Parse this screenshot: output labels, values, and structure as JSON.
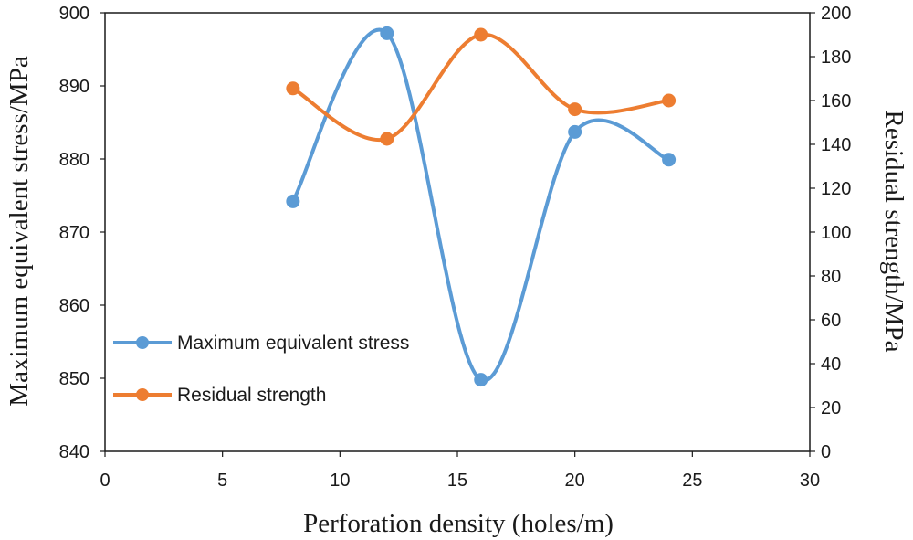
{
  "chart_data": {
    "type": "line",
    "title": "",
    "xlabel": "Perforation density (holes/m)",
    "ylabel_left": "Maximum equivalent stress/MPa",
    "ylabel_right": "Residual strength/MPa",
    "xlim": [
      0,
      30
    ],
    "ylim_left": [
      840,
      900
    ],
    "ylim_right": [
      0,
      200
    ],
    "x_ticks": [
      "0",
      "5",
      "10",
      "15",
      "20",
      "25",
      "30"
    ],
    "y_left_ticks": [
      "840",
      "850",
      "860",
      "870",
      "880",
      "890",
      "900"
    ],
    "y_right_ticks": [
      "0",
      "20",
      "40",
      "60",
      "80",
      "100",
      "120",
      "140",
      "160",
      "180",
      "200"
    ],
    "grid": false,
    "legend_position": "lower-left",
    "series": [
      {
        "name": "Maximum equivalent stress",
        "axis": "left",
        "color": "#5B9BD5",
        "x": [
          8,
          12,
          16,
          20,
          24
        ],
        "values": [
          874.2,
          897.2,
          849.8,
          883.7,
          879.9
        ]
      },
      {
        "name": "Residual strength",
        "axis": "right",
        "color": "#ED7D31",
        "x": [
          8,
          12,
          16,
          20,
          24
        ],
        "values": [
          165.5,
          142.5,
          190.0,
          156.0,
          160.0
        ]
      }
    ]
  }
}
